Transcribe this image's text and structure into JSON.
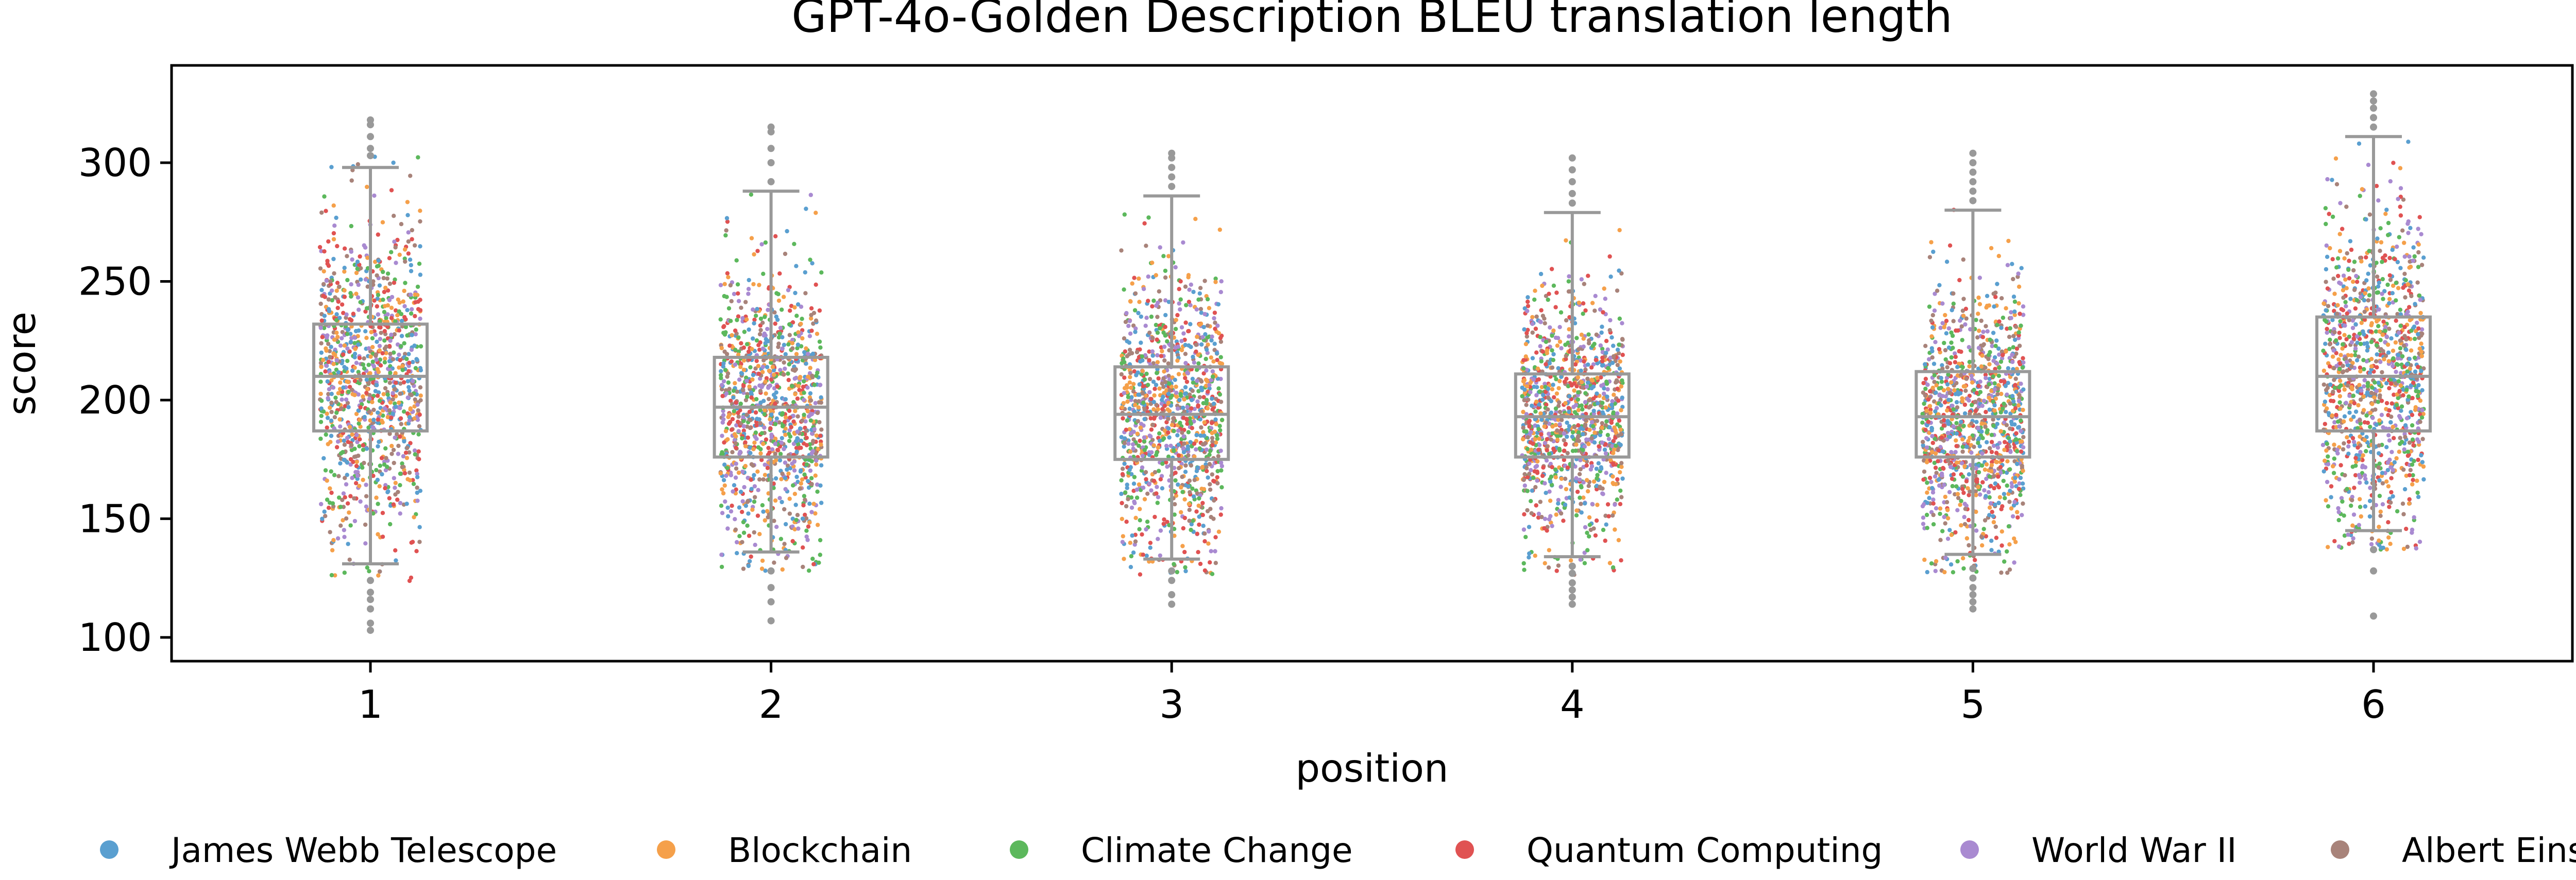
{
  "chart_data": {
    "type": "box",
    "overlay": "strip",
    "title": "GPT-4o-Golden Description BLEU translation length",
    "xlabel": "position",
    "ylabel": "score",
    "ylim": [
      90,
      341
    ],
    "yticks": [
      100,
      150,
      200,
      250,
      300
    ],
    "categories": [
      "1",
      "2",
      "3",
      "4",
      "5",
      "6"
    ],
    "box_color": "#999999",
    "boxes": [
      {
        "x": "1",
        "whislo": 131,
        "q1": 187,
        "med": 210,
        "q3": 232,
        "whishi": 298,
        "outliers": [
          103,
          106,
          112,
          116,
          119,
          124,
          303,
          306,
          311,
          316,
          318
        ]
      },
      {
        "x": "2",
        "whislo": 136,
        "q1": 176,
        "med": 197,
        "q3": 218,
        "whishi": 288,
        "outliers": [
          107,
          115,
          121,
          128,
          292,
          300,
          306,
          313,
          315
        ]
      },
      {
        "x": "3",
        "whislo": 133,
        "q1": 175,
        "med": 194,
        "q3": 214,
        "whishi": 286,
        "outliers": [
          114,
          118,
          124,
          128,
          290,
          294,
          298,
          302,
          304
        ]
      },
      {
        "x": "4",
        "whislo": 134,
        "q1": 176,
        "med": 193,
        "q3": 211,
        "whishi": 279,
        "outliers": [
          114,
          117,
          120,
          123,
          127,
          130,
          283,
          287,
          292,
          297,
          302
        ]
      },
      {
        "x": "5",
        "whislo": 135,
        "q1": 176,
        "med": 193,
        "q3": 212,
        "whishi": 280,
        "outliers": [
          112,
          115,
          118,
          121,
          125,
          129,
          284,
          288,
          292,
          296,
          300,
          304
        ]
      },
      {
        "x": "6",
        "whislo": 145,
        "q1": 187,
        "med": 210,
        "q3": 235,
        "whishi": 311,
        "outliers": [
          109,
          128,
          137,
          315,
          319,
          323,
          326,
          329
        ]
      }
    ],
    "series": [
      {
        "name": "James Webb Telescope",
        "color": "#5a9fd0"
      },
      {
        "name": "Blockchain",
        "color": "#f5a04a"
      },
      {
        "name": "Climate Change",
        "color": "#5cb85c"
      },
      {
        "name": "Quantum Computing",
        "color": "#e05252"
      },
      {
        "name": "World War II",
        "color": "#a98ad1"
      },
      {
        "name": "Albert Einstein",
        "color": "#a8837a"
      }
    ],
    "points_per_position": 1100,
    "legend_position": "bottom",
    "grid": false
  }
}
